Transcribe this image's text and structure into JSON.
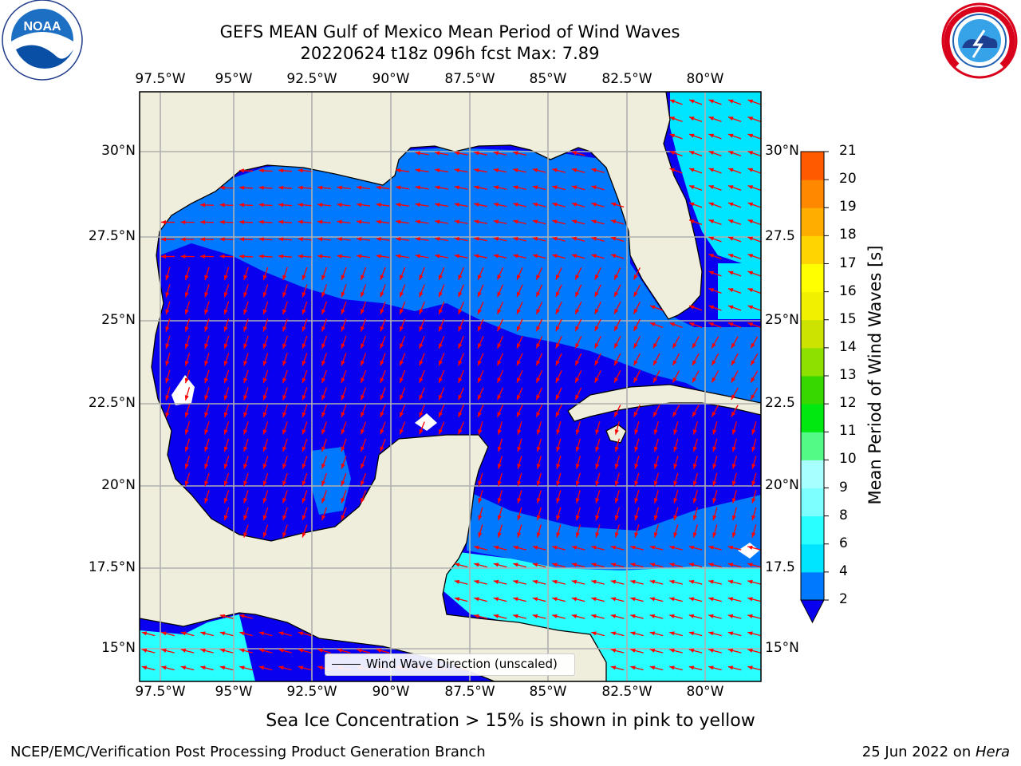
{
  "title": {
    "line1": "GEFS MEAN Gulf of Mexico Mean Period of Wind Waves",
    "line2": "20220624 t18z 096h fcst   Max: 7.89"
  },
  "map": {
    "lon_ticks": [
      "97.5°W",
      "95°W",
      "92.5°W",
      "90°W",
      "87.5°W",
      "85°W",
      "82.5°W",
      "80°W"
    ],
    "lat_ticks_left": [
      "30°N",
      "27.5°N",
      "25°N",
      "22.5°N",
      "20°N",
      "17.5°N",
      "15°N"
    ],
    "lat_ticks_right": [
      "30°N",
      "27.5",
      "25°N",
      "22.5",
      "20°N",
      "17.5",
      "15°N"
    ],
    "legend_label": "Wind Wave Direction (unscaled)",
    "land_color": "#efeedc",
    "vector_color": "#ff0000"
  },
  "colorbar": {
    "label": "Mean Period of Wind Waves [s]",
    "tick_labels": [
      "2",
      "4",
      "6",
      "8",
      "9",
      "10",
      "11",
      "12",
      "13",
      "14",
      "15",
      "16",
      "17",
      "18",
      "19",
      "20",
      "21"
    ],
    "colors": [
      "#0079ff",
      "#00e5ff",
      "#2affff",
      "#7dffff",
      "#a8ffff",
      "#53fa85",
      "#00e810",
      "#36d800",
      "#8ee000",
      "#cce200",
      "#f0f000",
      "#ffff00",
      "#ffd400",
      "#ffae00",
      "#ff8800",
      "#ff5a00",
      "#ff2800",
      "#ff0000"
    ],
    "under_color": "#0a00f0"
  },
  "logos": {
    "noaa_text": "NOAA",
    "noaa_ring": "NATIONAL OCEANIC AND ATMOSPHERIC ADMINISTRATION · U.S. DEPARTMENT OF COMMERCE",
    "nws_ring": "NATIONAL WEATHER SERVICE"
  },
  "note": "Sea Ice Concentration > 15% is shown in pink to yellow",
  "footer": {
    "left": "NCEP/EMC/Verification Post Processing Product Generation Branch",
    "right_date": "25 Jun 2022 on ",
    "right_host": "Hera"
  }
}
